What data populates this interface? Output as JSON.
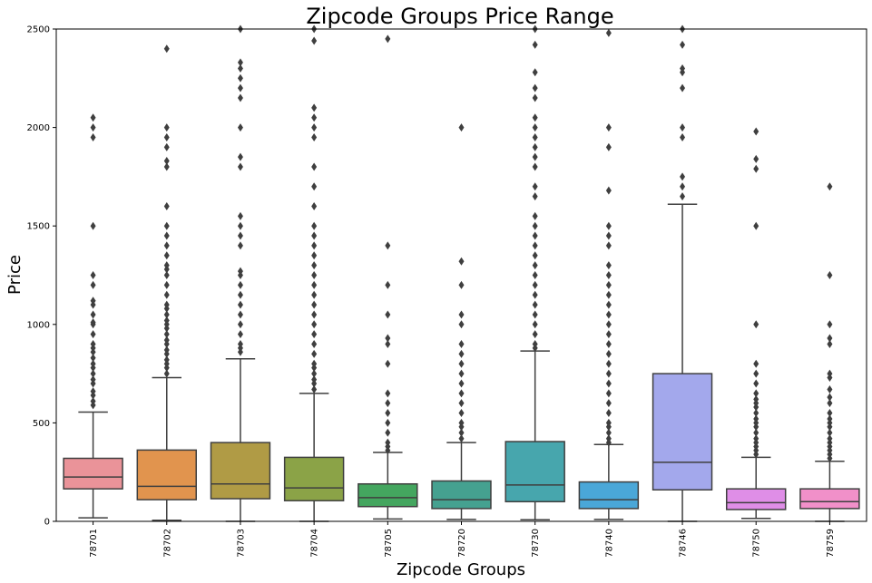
{
  "chart_data": {
    "type": "box",
    "title": "Zipcode Groups Price Range",
    "xlabel": "Zipcode Groups",
    "ylabel": "Price",
    "ylim": [
      0,
      2500
    ],
    "yticks": [
      0,
      500,
      1000,
      1500,
      2000,
      2500
    ],
    "grid": false,
    "categories": [
      "78701",
      "78702",
      "78703",
      "78704",
      "78705",
      "78720",
      "78730",
      "78740",
      "78746",
      "78750",
      "78759"
    ],
    "boxes": [
      {
        "category": "78701",
        "color": "#ea9399",
        "whisker_low": 18,
        "q1": 165,
        "median": 225,
        "q3": 320,
        "whisker_high": 555,
        "outliers": [
          590,
          610,
          640,
          660,
          700,
          720,
          750,
          780,
          800,
          830,
          860,
          880,
          900,
          950,
          1000,
          1010,
          1050,
          1100,
          1120,
          1200,
          1250,
          1500,
          1950,
          2000,
          2050
        ]
      },
      {
        "category": "78702",
        "color": "#e1944e",
        "whisker_low": 5,
        "q1": 110,
        "median": 178,
        "q3": 362,
        "whisker_high": 730,
        "outliers": [
          750,
          780,
          800,
          820,
          850,
          870,
          900,
          920,
          950,
          980,
          1000,
          1020,
          1050,
          1080,
          1100,
          1150,
          1200,
          1250,
          1280,
          1300,
          1350,
          1400,
          1450,
          1500,
          1600,
          1800,
          1830,
          1900,
          1950,
          2000,
          2400
        ]
      },
      {
        "category": "78703",
        "color": "#b09b45",
        "whisker_low": 0,
        "q1": 115,
        "median": 190,
        "q3": 400,
        "whisker_high": 825,
        "outliers": [
          860,
          880,
          900,
          950,
          1000,
          1050,
          1100,
          1150,
          1200,
          1250,
          1270,
          1400,
          1450,
          1500,
          1550,
          1800,
          1850,
          2000,
          2150,
          2200,
          2250,
          2300,
          2330,
          2500
        ]
      },
      {
        "category": "78704",
        "color": "#8ba347",
        "whisker_low": 0,
        "q1": 105,
        "median": 170,
        "q3": 325,
        "whisker_high": 650,
        "outliers": [
          670,
          700,
          720,
          750,
          780,
          800,
          850,
          900,
          950,
          1000,
          1050,
          1100,
          1150,
          1200,
          1250,
          1300,
          1350,
          1400,
          1450,
          1500,
          1600,
          1700,
          1800,
          1950,
          2000,
          2050,
          2100,
          2440,
          2500
        ]
      },
      {
        "category": "78705",
        "color": "#44a65f",
        "whisker_low": 12,
        "q1": 75,
        "median": 120,
        "q3": 190,
        "whisker_high": 350,
        "outliers": [
          360,
          380,
          400,
          450,
          500,
          550,
          600,
          650,
          800,
          900,
          930,
          1050,
          1200,
          1400,
          2450
        ]
      },
      {
        "category": "78720",
        "color": "#45a190",
        "whisker_low": 10,
        "q1": 65,
        "median": 110,
        "q3": 205,
        "whisker_high": 400,
        "outliers": [
          420,
          450,
          480,
          500,
          550,
          600,
          650,
          700,
          750,
          800,
          850,
          900,
          1000,
          1050,
          1200,
          1320,
          2000
        ]
      },
      {
        "category": "78730",
        "color": "#47a6ad",
        "whisker_low": 8,
        "q1": 100,
        "median": 185,
        "q3": 405,
        "whisker_high": 865,
        "outliers": [
          880,
          900,
          950,
          1000,
          1050,
          1100,
          1150,
          1200,
          1250,
          1300,
          1350,
          1400,
          1450,
          1500,
          1550,
          1650,
          1700,
          1800,
          1850,
          1900,
          1950,
          2000,
          2050,
          2150,
          2200,
          2280,
          2420,
          2500
        ]
      },
      {
        "category": "78740",
        "color": "#4aa7d8",
        "whisker_low": 10,
        "q1": 65,
        "median": 110,
        "q3": 200,
        "whisker_high": 390,
        "outliers": [
          400,
          420,
          450,
          480,
          500,
          550,
          600,
          650,
          700,
          750,
          800,
          850,
          900,
          950,
          1000,
          1050,
          1100,
          1150,
          1200,
          1250,
          1300,
          1400,
          1450,
          1500,
          1680,
          1900,
          2000,
          2480
        ]
      },
      {
        "category": "78746",
        "color": "#a3a8ec",
        "whisker_low": 0,
        "q1": 160,
        "median": 300,
        "q3": 750,
        "whisker_high": 1610,
        "outliers": [
          1650,
          1700,
          1750,
          1950,
          2000,
          2200,
          2280,
          2300,
          2420,
          2500
        ]
      },
      {
        "category": "78750",
        "color": "#df8ee7",
        "whisker_low": 15,
        "q1": 60,
        "median": 95,
        "q3": 165,
        "whisker_high": 325,
        "outliers": [
          340,
          360,
          380,
          400,
          420,
          450,
          480,
          500,
          520,
          550,
          580,
          600,
          620,
          650,
          700,
          750,
          800,
          1000,
          1500,
          1790,
          1840,
          1980
        ]
      },
      {
        "category": "78759",
        "color": "#f190c9",
        "whisker_low": 0,
        "q1": 65,
        "median": 100,
        "q3": 165,
        "whisker_high": 305,
        "outliers": [
          320,
          340,
          360,
          380,
          400,
          420,
          450,
          480,
          500,
          520,
          550,
          600,
          630,
          670,
          730,
          750,
          900,
          930,
          1000,
          1250,
          1700
        ]
      }
    ]
  }
}
